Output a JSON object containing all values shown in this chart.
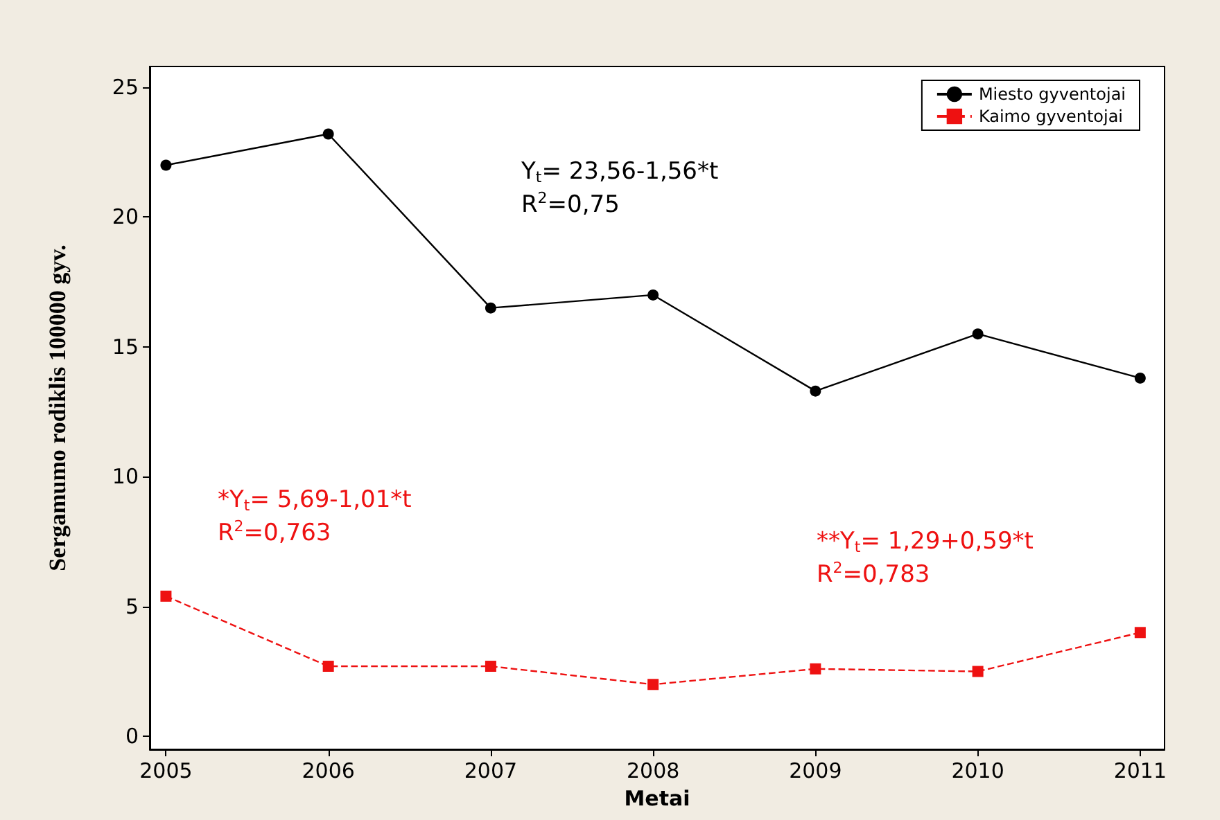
{
  "chart_data": {
    "type": "line",
    "xlabel": "Metai",
    "ylabel": "Sergamumo rodiklis 100000 gyv.",
    "x": [
      2005,
      2006,
      2007,
      2008,
      2009,
      2010,
      2011
    ],
    "series": [
      {
        "name": "Miesto gyventojai",
        "color": "#000000",
        "marker": "circle",
        "line_style": "solid",
        "values": [
          22.0,
          23.2,
          16.5,
          17.0,
          13.3,
          15.5,
          13.8
        ]
      },
      {
        "name": "Kaimo gyventojai",
        "color": "#ee1111",
        "marker": "square",
        "line_style": "dashed",
        "values": [
          5.4,
          2.7,
          2.7,
          2.0,
          2.6,
          2.5,
          4.0
        ]
      }
    ],
    "xlim": [
      2004.9,
      2011.15
    ],
    "xticks": [
      2005,
      2006,
      2007,
      2008,
      2009,
      2010,
      2011
    ],
    "ylim": [
      -0.5,
      25.8
    ],
    "yticks": [
      0,
      5,
      10,
      15,
      20,
      25
    ],
    "grid": false,
    "legend": "top right",
    "annotations": [
      "Y$_{t}$= 23,56-1,56*t\nR$^{2}$=0,75",
      "*Y$_{t}$= 5,69-1,01*t\nR$^{2}$=0,763",
      "**Y$_{t}$= 1,29+0,59*t\nR$^{2}$=0,783"
    ]
  }
}
